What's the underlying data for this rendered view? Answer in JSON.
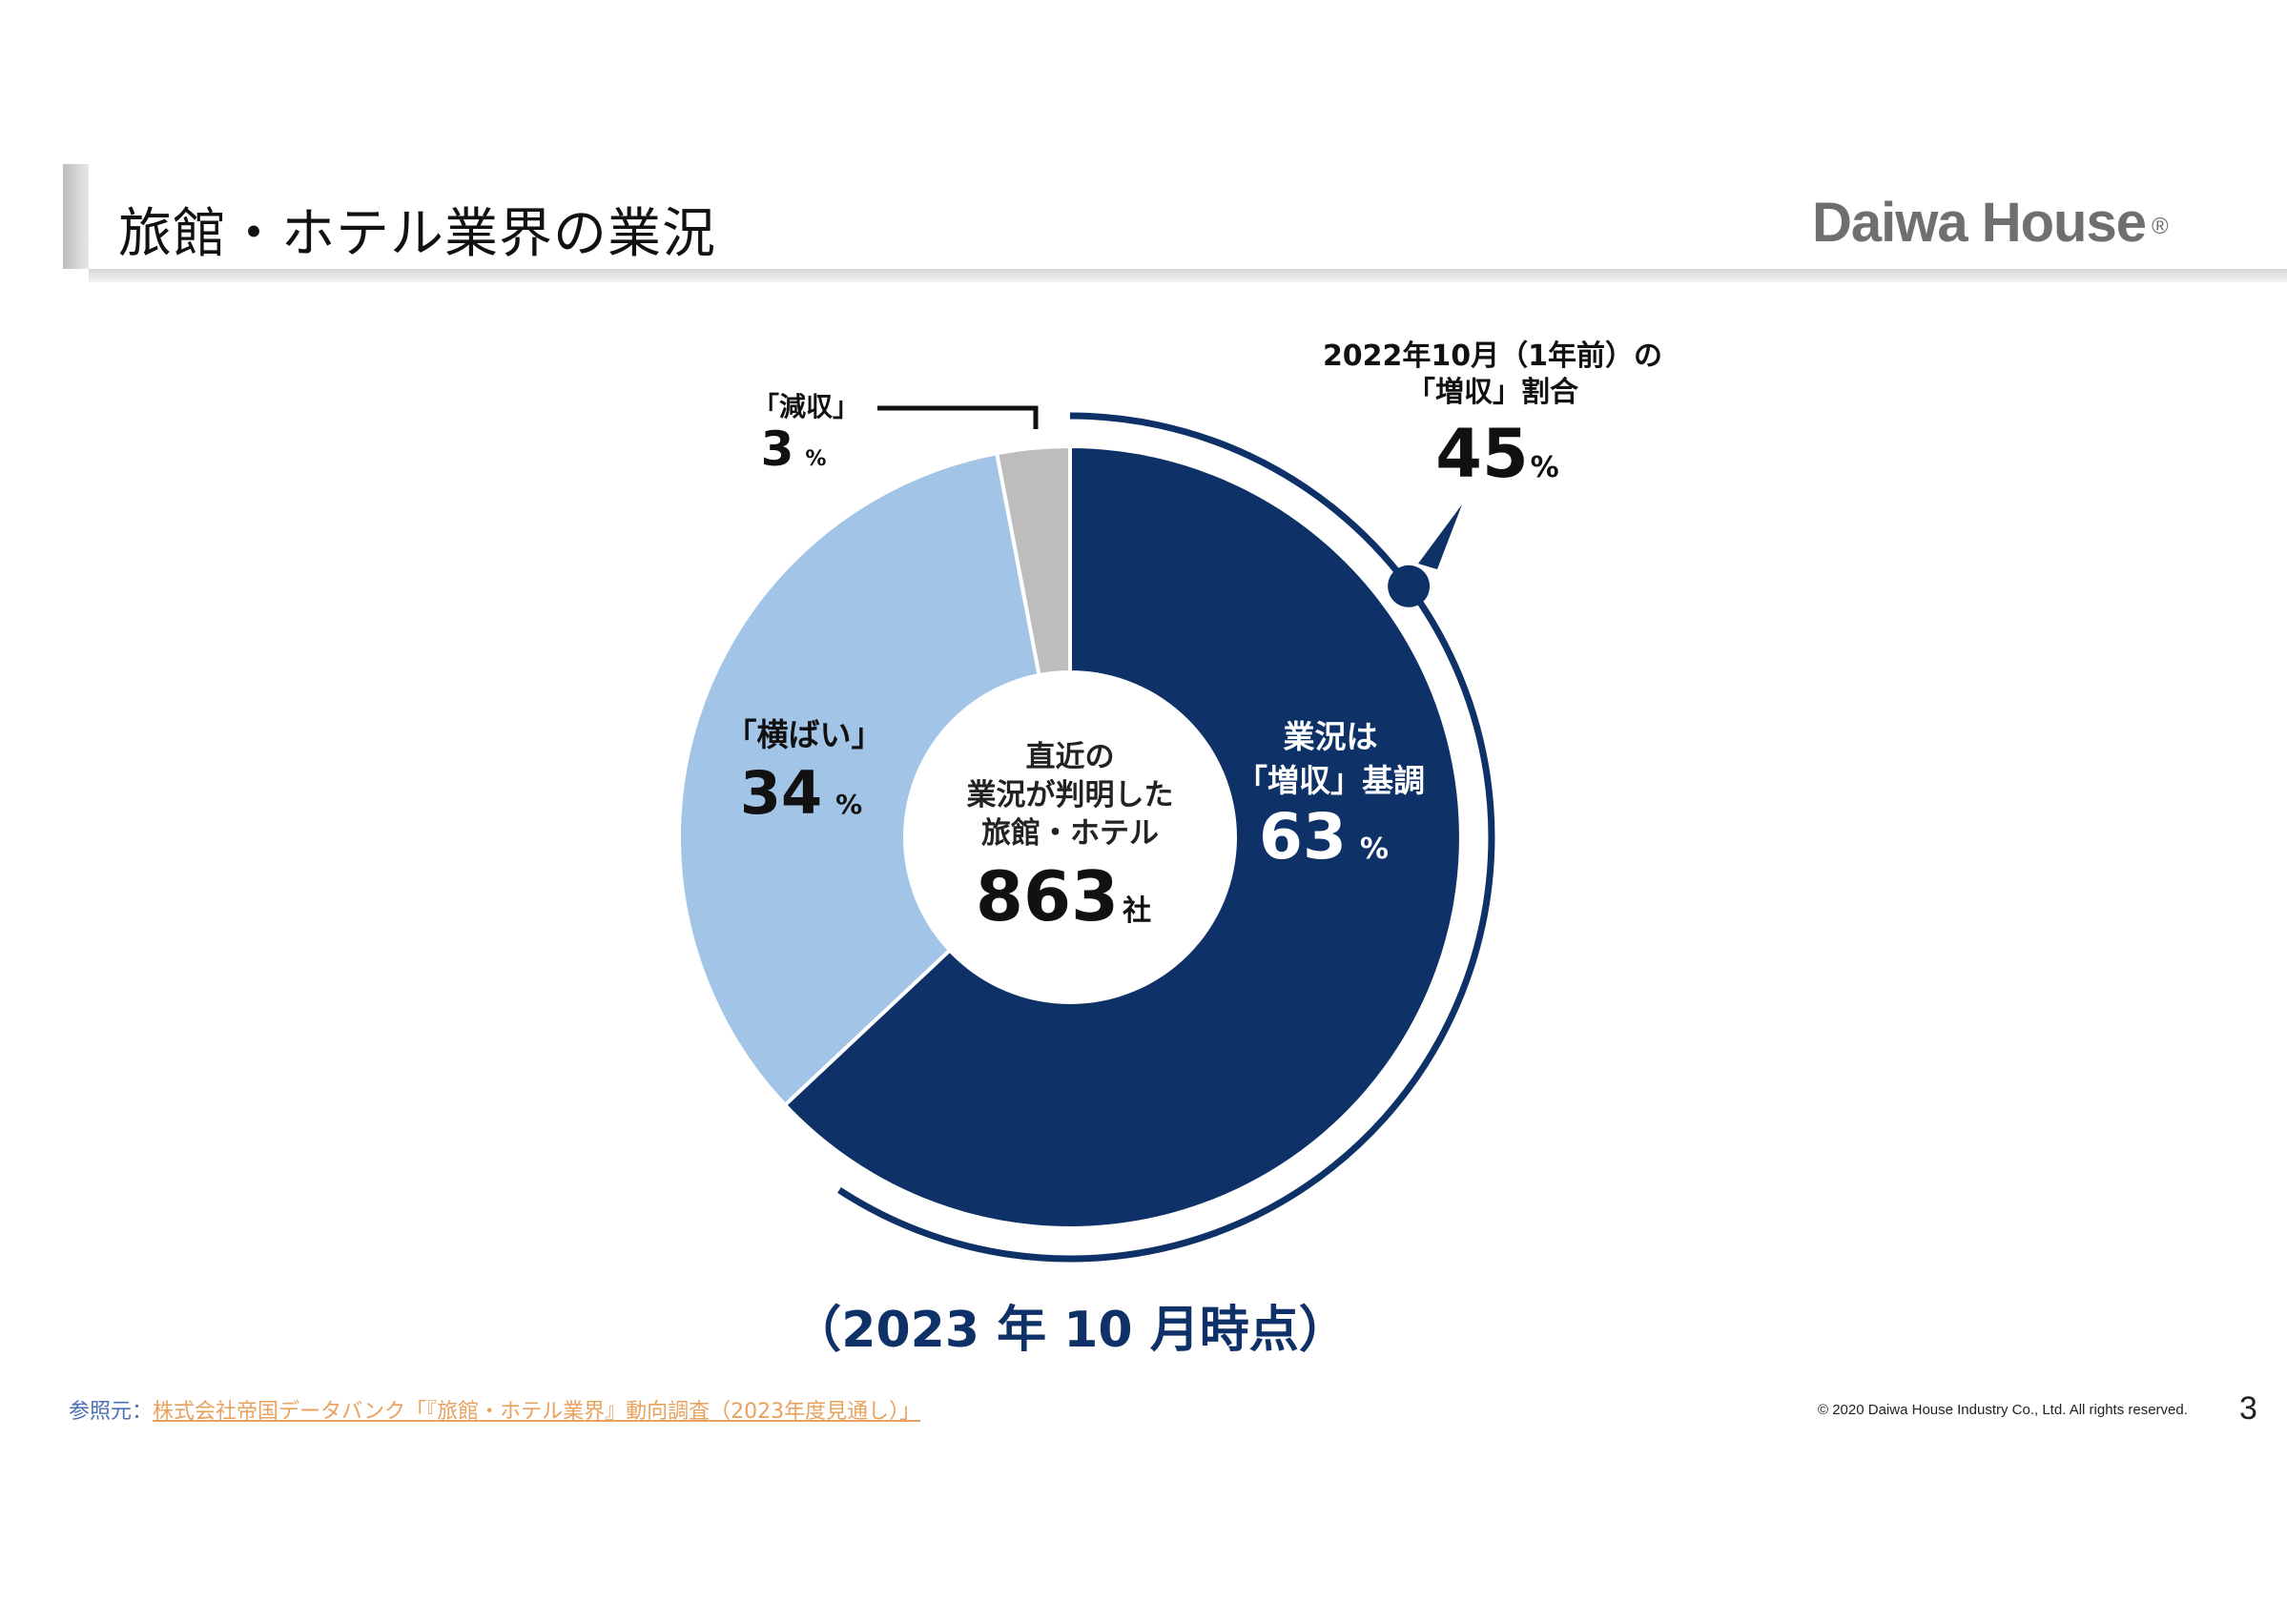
{
  "slide": {
    "title": "旅館・ホテル業界の業況",
    "logo": "Daiwa House",
    "logo_mark": "®",
    "source_label": "参照元：",
    "source_link": "株式会社帝国データバンク「『旅館・ホテル業界』動向調査（2023年度見通し）」",
    "copyright": "© 2020 Daiwa House Industry Co., Ltd. All rights reserved.",
    "page_number": "3"
  },
  "chart_data": {
    "type": "pie",
    "subtype": "donut",
    "categories": [
      "業況は「増収」基調",
      "「横ばい」",
      "「減収」"
    ],
    "values": [
      63,
      34,
      3
    ],
    "unit": "%",
    "colors": [
      "#0e3168",
      "#a2c4e6",
      "#bdbdbd"
    ],
    "slice_labels": [
      {
        "line1": "業況は",
        "line2": "「増収」基調",
        "value": "63",
        "unit": "%"
      },
      {
        "line1": "「横ばい」",
        "value": "34",
        "unit": "%"
      },
      {
        "line1": "「減収」",
        "value": "3",
        "unit": "%"
      }
    ],
    "center": {
      "line1": "直近の",
      "line2": "業況が判明した",
      "line3": "旅館・ホテル",
      "value": "863",
      "unit": "社"
    },
    "comparison": {
      "line1": "2022年10月（1年前）の",
      "line2": "「増収」割合",
      "value": "45",
      "unit": "%",
      "ratio": 0.45
    },
    "caption": "（2023 年 10 月時点）"
  }
}
